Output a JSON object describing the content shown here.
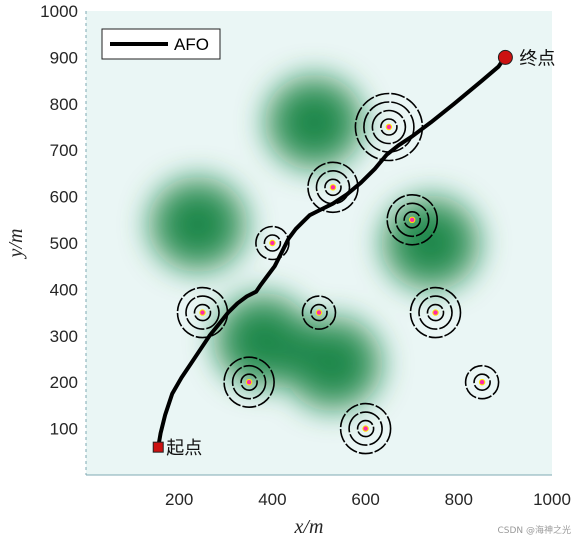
{
  "chart_data": {
    "type": "line",
    "xlabel": "x/m",
    "ylabel": "y/m",
    "xlim": [
      0,
      1000
    ],
    "ylim": [
      0,
      1000
    ],
    "x_ticks": [
      200,
      400,
      600,
      800,
      1000
    ],
    "y_ticks": [
      100,
      200,
      300,
      400,
      500,
      600,
      700,
      800,
      900,
      1000
    ],
    "legend": {
      "position": "top-left",
      "entries": [
        "AFO"
      ]
    },
    "series": [
      {
        "name": "AFO",
        "color": "#000000",
        "x": [
          155,
          160,
          170,
          185,
          205,
          225,
          245,
          265,
          285,
          305,
          325,
          345,
          365,
          375,
          390,
          405,
          420,
          435,
          450,
          465,
          480,
          500,
          530,
          560,
          590,
          620,
          645,
          670,
          700,
          740,
          790,
          850,
          885,
          895,
          900
        ],
        "y": [
          60,
          90,
          130,
          175,
          210,
          240,
          270,
          300,
          325,
          350,
          370,
          385,
          395,
          410,
          430,
          450,
          480,
          510,
          530,
          545,
          560,
          570,
          585,
          605,
          630,
          660,
          690,
          710,
          730,
          760,
          800,
          850,
          880,
          895,
          900
        ]
      }
    ],
    "start": {
      "x": 155,
      "y": 60,
      "label": "起点",
      "color": "#cc1111"
    },
    "end": {
      "x": 900,
      "y": 900,
      "label": "终点",
      "color": "#cc1111"
    },
    "threats": [
      {
        "x": 400,
        "y": 500,
        "rings": 2
      },
      {
        "x": 530,
        "y": 620,
        "rings": 3
      },
      {
        "x": 650,
        "y": 750,
        "rings": 4
      },
      {
        "x": 700,
        "y": 550,
        "rings": 3
      },
      {
        "x": 250,
        "y": 350,
        "rings": 3
      },
      {
        "x": 500,
        "y": 350,
        "rings": 2
      },
      {
        "x": 750,
        "y": 350,
        "rings": 3
      },
      {
        "x": 350,
        "y": 200,
        "rings": 3
      },
      {
        "x": 600,
        "y": 100,
        "rings": 3
      },
      {
        "x": 850,
        "y": 200,
        "rings": 2
      }
    ],
    "terrain_peaks": [
      {
        "x": 490,
        "y": 760
      },
      {
        "x": 240,
        "y": 540
      },
      {
        "x": 740,
        "y": 500
      },
      {
        "x": 530,
        "y": 240
      },
      {
        "x": 380,
        "y": 290
      }
    ],
    "grid": false,
    "colors": {
      "terrain": "#0c7f3d",
      "background": "#eaf6f5",
      "threat_center": "#ffe600",
      "threat_dot": "#ff2aa8"
    }
  },
  "watermark": "CSDN @海神之光"
}
